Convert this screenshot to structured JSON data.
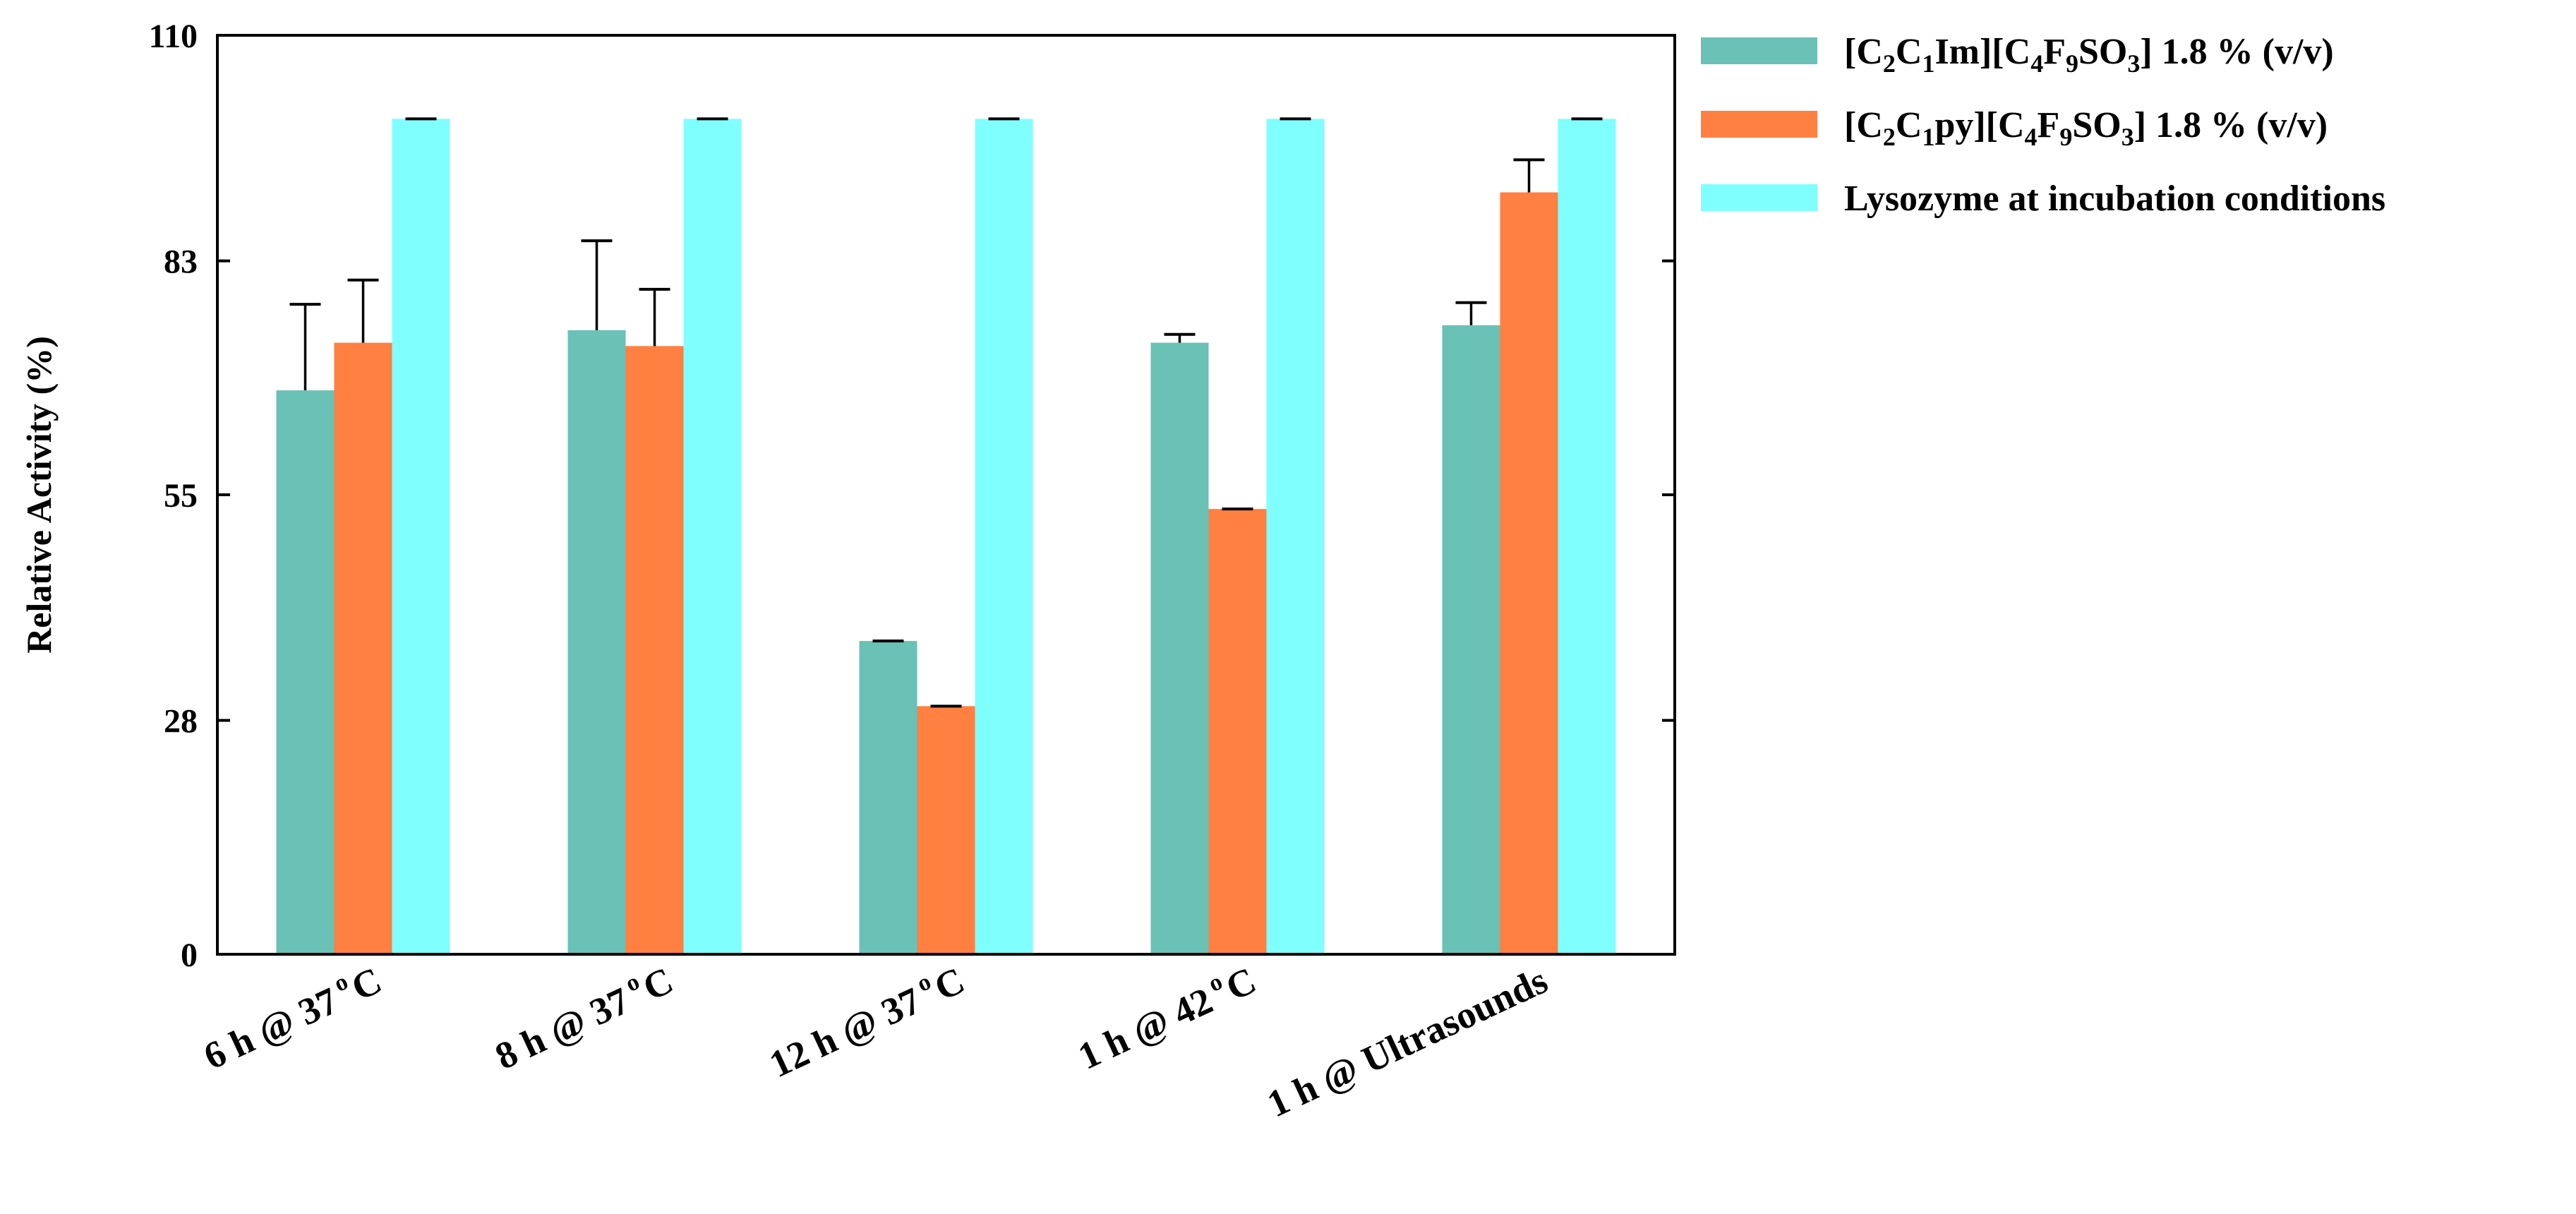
{
  "chart_data": {
    "type": "bar",
    "title": "",
    "xlabel": "",
    "ylabel": "Relative Activity (%)",
    "ylim": [
      0,
      110
    ],
    "yticks": [
      0,
      28,
      55,
      83,
      110
    ],
    "grid": false,
    "legend_position": "right",
    "categories": [
      {
        "base": "6 h @ 37",
        "sup": "o",
        "tail": "C"
      },
      {
        "base": "8 h @ 37",
        "sup": "o",
        "tail": "C"
      },
      {
        "base": "12 h @ 37",
        "sup": "o",
        "tail": "C"
      },
      {
        "base": "1 h @ 42",
        "sup": "o",
        "tail": "C"
      },
      {
        "base": "1 h @ Ultrasounds",
        "sup": "",
        "tail": ""
      }
    ],
    "series": [
      {
        "name": "[C2C1Im][C4F9SO3] 1.8 % (v/v)",
        "label_parts": [
          {
            "t": "[C"
          },
          {
            "t": "2",
            "sub": true
          },
          {
            "t": "C"
          },
          {
            "t": "1",
            "sub": true
          },
          {
            "t": "Im][C"
          },
          {
            "t": "4",
            "sub": true
          },
          {
            "t": "F"
          },
          {
            "t": "9",
            "sub": true
          },
          {
            "t": "SO"
          },
          {
            "t": "3",
            "sub": true
          },
          {
            "t": "] 1.8 % (v/v)"
          }
        ],
        "color": "#6ac1b5",
        "values": [
          67.5,
          74.7,
          37.5,
          73.2,
          75.3
        ],
        "errors": [
          10.3,
          10.7,
          0,
          1,
          2.7
        ]
      },
      {
        "name": "[C2C1py][C4F9SO3] 1.8 % (v/v)",
        "label_parts": [
          {
            "t": "[C"
          },
          {
            "t": "2",
            "sub": true
          },
          {
            "t": "C"
          },
          {
            "t": "1",
            "sub": true
          },
          {
            "t": "py][C"
          },
          {
            "t": "4",
            "sub": true
          },
          {
            "t": "F"
          },
          {
            "t": "9",
            "sub": true
          },
          {
            "t": "SO"
          },
          {
            "t": "3",
            "sub": true
          },
          {
            "t": "] 1.8 % (v/v)"
          }
        ],
        "color": "#ff8040",
        "values": [
          73.2,
          72.8,
          29.7,
          53.3,
          91.2
        ],
        "errors": [
          7.5,
          6.8,
          0,
          0,
          3.9
        ]
      },
      {
        "name": "Lysozyme at incubation conditions",
        "label_parts": [
          {
            "t": "Lysozyme at incubation conditions"
          }
        ],
        "color": "#80ffff",
        "values": [
          100,
          100,
          100,
          100,
          100
        ],
        "errors": [
          0,
          0,
          0,
          0,
          0
        ]
      }
    ]
  }
}
